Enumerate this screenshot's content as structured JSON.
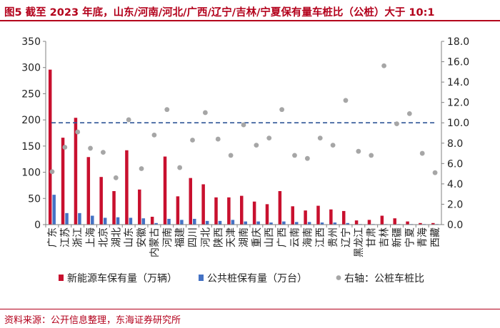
{
  "figure": {
    "title": "图5  截至 2023 年底，山东/河南/河北/广西/辽宁/吉林/宁夏保有量车桩比（公桩）大于 10:1",
    "source": "资料来源：公开信息整理，东海证券研究所"
  },
  "chart_data": {
    "type": "bar",
    "categories": [
      "广东",
      "江苏",
      "浙江",
      "上海",
      "北京",
      "湖北",
      "山东",
      "安徽",
      "内蒙古",
      "河南",
      "福建",
      "四川",
      "河北",
      "陕西",
      "天津",
      "湖南",
      "重庆",
      "山西",
      "广西",
      "云南",
      "海南",
      "江西",
      "贵州",
      "辽宁",
      "黑龙江",
      "甘肃",
      "吉林",
      "新疆",
      "宁夏",
      "青海",
      "西藏"
    ],
    "series": [
      {
        "name": "新能源车保有量（万辆）",
        "axis": "left",
        "kind": "bar",
        "color": "#c8102e",
        "values": [
          296,
          166,
          204,
          129,
          91,
          64,
          142,
          67,
          15,
          130,
          54,
          89,
          77,
          52,
          52,
          55,
          44,
          39,
          64,
          35,
          27,
          36,
          29,
          26,
          8,
          9,
          17,
          12,
          6,
          3,
          3
        ]
      },
      {
        "name": "公共桩保有量（万台）",
        "axis": "left",
        "kind": "bar",
        "color": "#4472c4",
        "values": [
          57,
          22,
          22,
          17,
          13,
          14,
          13,
          12,
          3,
          11,
          9,
          11,
          7,
          7,
          9,
          6,
          6,
          4,
          6,
          5,
          5,
          4,
          4,
          3,
          1,
          1,
          1,
          1,
          1,
          1,
          1
        ]
      },
      {
        "name": "右轴：公桩车桩比",
        "axis": "right",
        "kind": "scatter",
        "color": "#a6a6a6",
        "values": [
          5.2,
          7.6,
          9.1,
          7.5,
          7.1,
          4.6,
          10.3,
          5.5,
          8.8,
          11.3,
          5.6,
          8.3,
          11.0,
          8.4,
          6.8,
          9.8,
          7.8,
          8.5,
          11.3,
          6.8,
          6.5,
          8.5,
          7.8,
          12.2,
          7.2,
          6.8,
          15.6,
          9.9,
          10.9,
          7.0,
          5.1
        ]
      }
    ],
    "reference_line": {
      "axis": "right",
      "value": 10,
      "style": "dashed",
      "color": "#2f5597"
    },
    "left_axis": {
      "ylim": [
        0,
        350
      ],
      "ticks": [
        "0",
        "50",
        "100",
        "150",
        "200",
        "250",
        "300",
        "350"
      ]
    },
    "right_axis": {
      "ylim": [
        0,
        18
      ],
      "ticks": [
        "0.0",
        "2.0",
        "4.0",
        "6.0",
        "8.0",
        "10.0",
        "12.0",
        "14.0",
        "16.0",
        "18.0"
      ]
    },
    "legend": {
      "position": "bottom"
    }
  }
}
